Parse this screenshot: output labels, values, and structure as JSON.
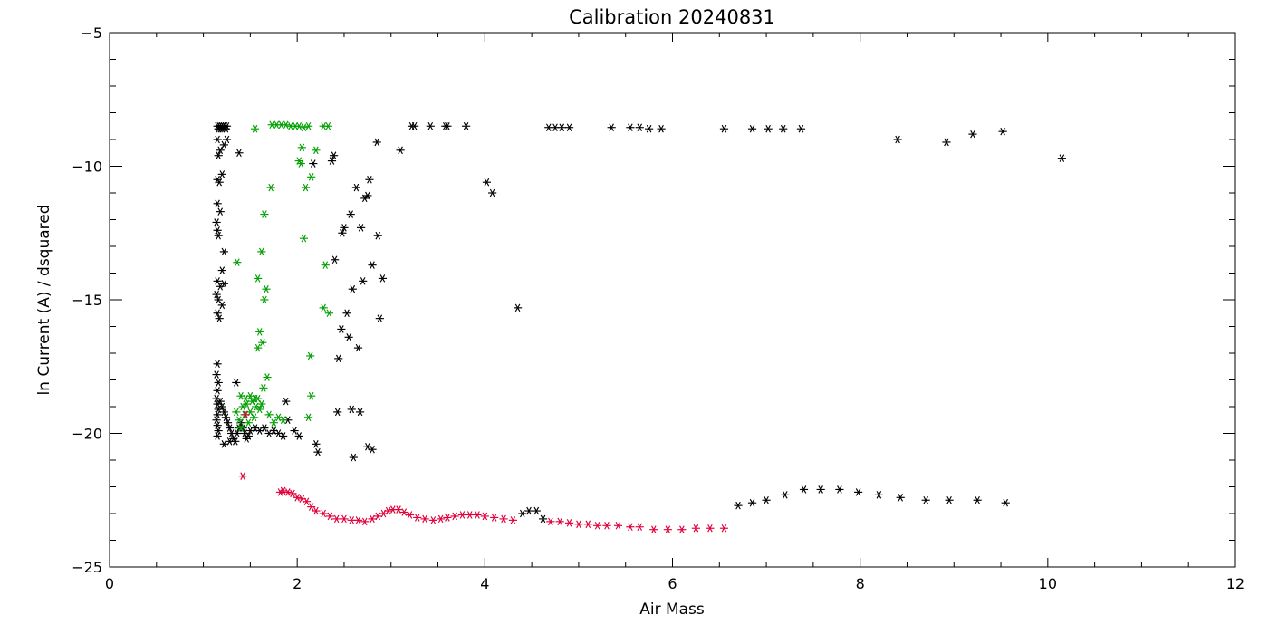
{
  "chart_data": {
    "type": "scatter",
    "title": "Calibration 20240831",
    "xlabel": "Air Mass",
    "ylabel": "ln Current (A) / dsquared",
    "xlim": [
      0,
      12
    ],
    "ylim": [
      -25,
      -5
    ],
    "x_major_ticks": [
      0,
      2,
      4,
      6,
      8,
      10,
      12
    ],
    "y_major_ticks": [
      -25,
      -20,
      -15,
      -10,
      -5
    ],
    "marker": "asterisk",
    "grid": false,
    "series": [
      {
        "color": "#000000",
        "points": [
          [
            1.15,
            -8.5
          ],
          [
            1.16,
            -8.6
          ],
          [
            1.17,
            -8.5
          ],
          [
            1.18,
            -8.6
          ],
          [
            1.19,
            -8.5
          ],
          [
            1.2,
            -8.6
          ],
          [
            1.21,
            -8.5
          ],
          [
            1.22,
            -8.55
          ],
          [
            1.23,
            -8.5
          ],
          [
            1.24,
            -8.6
          ],
          [
            1.25,
            -8.5
          ],
          [
            1.15,
            -9.0
          ],
          [
            1.18,
            -9.4
          ],
          [
            1.22,
            -9.2
          ],
          [
            1.25,
            -9.0
          ],
          [
            1.16,
            -9.6
          ],
          [
            1.2,
            -10.3
          ],
          [
            1.17,
            -10.6
          ],
          [
            1.15,
            -10.5
          ],
          [
            1.15,
            -11.4
          ],
          [
            1.18,
            -11.7
          ],
          [
            1.14,
            -12.1
          ],
          [
            1.15,
            -12.4
          ],
          [
            1.16,
            -12.6
          ],
          [
            1.22,
            -13.2
          ],
          [
            1.2,
            -13.9
          ],
          [
            1.15,
            -14.3
          ],
          [
            1.18,
            -14.5
          ],
          [
            1.22,
            -14.4
          ],
          [
            1.14,
            -14.8
          ],
          [
            1.16,
            -15.0
          ],
          [
            1.2,
            -15.2
          ],
          [
            1.15,
            -15.5
          ],
          [
            1.17,
            -15.7
          ],
          [
            1.15,
            -17.4
          ],
          [
            1.14,
            -17.8
          ],
          [
            1.16,
            -18.1
          ],
          [
            1.15,
            -18.4
          ],
          [
            1.14,
            -18.7
          ],
          [
            1.15,
            -18.9
          ],
          [
            1.16,
            -19.1
          ],
          [
            1.15,
            -19.3
          ],
          [
            1.14,
            -19.5
          ],
          [
            1.15,
            -19.7
          ],
          [
            1.16,
            -19.9
          ],
          [
            1.15,
            -20.1
          ],
          [
            1.18,
            -18.8
          ],
          [
            1.2,
            -19.0
          ],
          [
            1.22,
            -19.2
          ],
          [
            1.24,
            -19.4
          ],
          [
            1.26,
            -19.6
          ],
          [
            1.28,
            -19.8
          ],
          [
            1.3,
            -20.0
          ],
          [
            1.32,
            -20.2
          ],
          [
            1.34,
            -20.3
          ],
          [
            1.36,
            -20.0
          ],
          [
            1.38,
            -19.8
          ],
          [
            1.4,
            -19.6
          ],
          [
            1.42,
            -19.8
          ],
          [
            1.44,
            -20.0
          ],
          [
            1.46,
            -20.2
          ],
          [
            1.48,
            -20.1
          ],
          [
            1.5,
            -19.9
          ],
          [
            1.55,
            -19.8
          ],
          [
            1.6,
            -19.9
          ],
          [
            1.65,
            -19.8
          ],
          [
            1.7,
            -20.0
          ],
          [
            1.75,
            -19.9
          ],
          [
            1.8,
            -20.0
          ],
          [
            1.85,
            -20.1
          ],
          [
            1.22,
            -20.4
          ],
          [
            1.28,
            -20.3
          ],
          [
            1.35,
            -18.1
          ],
          [
            1.38,
            -9.5
          ],
          [
            1.88,
            -18.8
          ],
          [
            1.9,
            -19.5
          ],
          [
            1.97,
            -19.9
          ],
          [
            2.02,
            -20.1
          ],
          [
            2.17,
            -9.9
          ],
          [
            2.37,
            -9.8
          ],
          [
            2.39,
            -9.6
          ],
          [
            2.4,
            -13.5
          ],
          [
            2.44,
            -17.2
          ],
          [
            2.47,
            -16.1
          ],
          [
            2.43,
            -19.2
          ],
          [
            2.48,
            -12.5
          ],
          [
            2.5,
            -12.3
          ],
          [
            2.53,
            -15.5
          ],
          [
            2.55,
            -16.4
          ],
          [
            2.57,
            -11.8
          ],
          [
            2.59,
            -14.6
          ],
          [
            2.58,
            -19.1
          ],
          [
            2.6,
            -20.9
          ],
          [
            2.63,
            -10.8
          ],
          [
            2.65,
            -16.8
          ],
          [
            2.67,
            -19.2
          ],
          [
            2.68,
            -12.3
          ],
          [
            2.7,
            -14.3
          ],
          [
            2.72,
            -11.2
          ],
          [
            2.75,
            -11.1
          ],
          [
            2.77,
            -10.5
          ],
          [
            2.8,
            -13.7
          ],
          [
            2.85,
            -9.1
          ],
          [
            2.86,
            -12.6
          ],
          [
            2.88,
            -15.7
          ],
          [
            2.91,
            -14.2
          ],
          [
            2.75,
            -20.5
          ],
          [
            2.8,
            -20.6
          ],
          [
            2.2,
            -20.4
          ],
          [
            2.22,
            -20.7
          ],
          [
            3.1,
            -9.4
          ],
          [
            3.22,
            -8.5
          ],
          [
            3.25,
            -8.5
          ],
          [
            3.42,
            -8.5
          ],
          [
            3.58,
            -8.5
          ],
          [
            3.6,
            -8.5
          ],
          [
            3.8,
            -8.5
          ],
          [
            4.02,
            -10.6
          ],
          [
            4.08,
            -11.0
          ],
          [
            4.35,
            -15.3
          ],
          [
            4.68,
            -8.55
          ],
          [
            4.75,
            -8.55
          ],
          [
            4.82,
            -8.55
          ],
          [
            4.9,
            -8.55
          ],
          [
            5.35,
            -8.55
          ],
          [
            5.55,
            -8.55
          ],
          [
            5.65,
            -8.55
          ],
          [
            5.75,
            -8.6
          ],
          [
            5.88,
            -8.6
          ],
          [
            6.55,
            -8.6
          ],
          [
            6.85,
            -8.6
          ],
          [
            7.02,
            -8.6
          ],
          [
            7.18,
            -8.6
          ],
          [
            7.37,
            -8.6
          ],
          [
            8.4,
            -9.0
          ],
          [
            8.92,
            -9.1
          ],
          [
            9.2,
            -8.8
          ],
          [
            9.52,
            -8.7
          ],
          [
            10.15,
            -9.7
          ],
          [
            4.4,
            -23.0
          ],
          [
            4.47,
            -22.9
          ],
          [
            4.55,
            -22.9
          ],
          [
            4.62,
            -23.2
          ],
          [
            6.7,
            -22.7
          ],
          [
            6.85,
            -22.6
          ],
          [
            7.0,
            -22.5
          ],
          [
            7.2,
            -22.3
          ],
          [
            7.4,
            -22.1
          ],
          [
            7.58,
            -22.1
          ],
          [
            7.78,
            -22.1
          ],
          [
            7.98,
            -22.2
          ],
          [
            8.2,
            -22.3
          ],
          [
            8.43,
            -22.4
          ],
          [
            8.7,
            -22.5
          ],
          [
            8.95,
            -22.5
          ],
          [
            9.25,
            -22.5
          ],
          [
            9.55,
            -22.6
          ]
        ]
      },
      {
        "color": "#00a000",
        "points": [
          [
            1.36,
            -13.6
          ],
          [
            1.55,
            -8.6
          ],
          [
            1.58,
            -14.2
          ],
          [
            1.6,
            -16.2
          ],
          [
            1.62,
            -13.2
          ],
          [
            1.63,
            -16.6
          ],
          [
            1.65,
            -15.0
          ],
          [
            1.67,
            -14.6
          ],
          [
            1.68,
            -17.9
          ],
          [
            1.64,
            -18.3
          ],
          [
            1.58,
            -16.8
          ],
          [
            1.65,
            -11.8
          ],
          [
            1.72,
            -10.8
          ],
          [
            1.35,
            -19.2
          ],
          [
            1.38,
            -19.5
          ],
          [
            1.4,
            -19.8
          ],
          [
            1.42,
            -19.0
          ],
          [
            1.44,
            -19.3
          ],
          [
            1.46,
            -18.9
          ],
          [
            1.48,
            -19.6
          ],
          [
            1.5,
            -19.2
          ],
          [
            1.52,
            -18.8
          ],
          [
            1.54,
            -19.4
          ],
          [
            1.56,
            -19.0
          ],
          [
            1.58,
            -18.7
          ],
          [
            1.6,
            -19.1
          ],
          [
            1.62,
            -18.9
          ],
          [
            1.4,
            -18.6
          ],
          [
            1.45,
            -18.7
          ],
          [
            1.5,
            -18.6
          ],
          [
            1.55,
            -18.7
          ],
          [
            1.7,
            -19.3
          ],
          [
            1.75,
            -19.6
          ],
          [
            1.8,
            -19.4
          ],
          [
            1.85,
            -19.5
          ],
          [
            1.73,
            -8.45
          ],
          [
            1.78,
            -8.45
          ],
          [
            1.83,
            -8.45
          ],
          [
            1.88,
            -8.45
          ],
          [
            1.93,
            -8.5
          ],
          [
            1.98,
            -8.5
          ],
          [
            2.02,
            -8.5
          ],
          [
            2.07,
            -8.55
          ],
          [
            2.12,
            -8.5
          ],
          [
            2.28,
            -8.5
          ],
          [
            2.33,
            -8.5
          ],
          [
            2.02,
            -9.8
          ],
          [
            2.04,
            -9.9
          ],
          [
            2.05,
            -9.3
          ],
          [
            2.09,
            -10.8
          ],
          [
            2.15,
            -10.4
          ],
          [
            2.2,
            -9.4
          ],
          [
            2.07,
            -12.7
          ],
          [
            2.3,
            -13.7
          ],
          [
            2.28,
            -15.3
          ],
          [
            2.34,
            -15.5
          ],
          [
            2.14,
            -17.1
          ],
          [
            2.15,
            -18.6
          ],
          [
            2.12,
            -19.4
          ]
        ]
      },
      {
        "color": "#e0003a",
        "points": [
          [
            1.42,
            -21.6
          ],
          [
            1.45,
            -19.3
          ],
          [
            1.82,
            -22.2
          ],
          [
            1.85,
            -22.15
          ],
          [
            1.9,
            -22.2
          ],
          [
            1.95,
            -22.25
          ],
          [
            2.0,
            -22.4
          ],
          [
            2.05,
            -22.45
          ],
          [
            2.1,
            -22.55
          ],
          [
            2.15,
            -22.75
          ],
          [
            2.2,
            -22.9
          ],
          [
            2.28,
            -23.0
          ],
          [
            2.35,
            -23.1
          ],
          [
            2.42,
            -23.2
          ],
          [
            2.5,
            -23.2
          ],
          [
            2.58,
            -23.25
          ],
          [
            2.65,
            -23.25
          ],
          [
            2.72,
            -23.3
          ],
          [
            2.8,
            -23.2
          ],
          [
            2.86,
            -23.1
          ],
          [
            2.92,
            -23.0
          ],
          [
            2.97,
            -22.9
          ],
          [
            3.02,
            -22.85
          ],
          [
            3.08,
            -22.85
          ],
          [
            3.14,
            -22.95
          ],
          [
            3.2,
            -23.05
          ],
          [
            3.28,
            -23.15
          ],
          [
            3.36,
            -23.2
          ],
          [
            3.45,
            -23.25
          ],
          [
            3.53,
            -23.2
          ],
          [
            3.6,
            -23.15
          ],
          [
            3.68,
            -23.1
          ],
          [
            3.76,
            -23.05
          ],
          [
            3.84,
            -23.05
          ],
          [
            3.92,
            -23.05
          ],
          [
            4.0,
            -23.1
          ],
          [
            4.1,
            -23.15
          ],
          [
            4.2,
            -23.2
          ],
          [
            4.3,
            -23.25
          ],
          [
            4.7,
            -23.3
          ],
          [
            4.8,
            -23.3
          ],
          [
            4.9,
            -23.35
          ],
          [
            5.0,
            -23.4
          ],
          [
            5.1,
            -23.4
          ],
          [
            5.2,
            -23.45
          ],
          [
            5.3,
            -23.45
          ],
          [
            5.42,
            -23.45
          ],
          [
            5.55,
            -23.5
          ],
          [
            5.65,
            -23.5
          ],
          [
            5.8,
            -23.6
          ],
          [
            5.95,
            -23.6
          ],
          [
            6.1,
            -23.6
          ],
          [
            6.25,
            -23.55
          ],
          [
            6.4,
            -23.55
          ],
          [
            6.55,
            -23.55
          ]
        ]
      }
    ]
  }
}
